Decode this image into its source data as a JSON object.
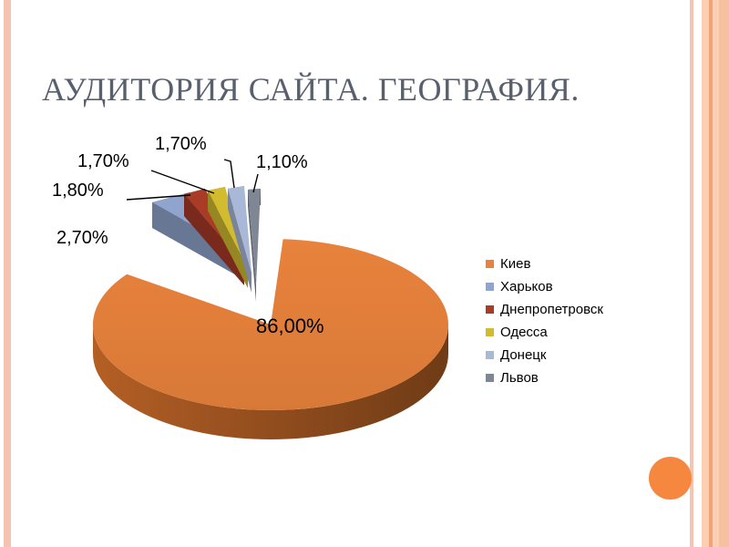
{
  "slide": {
    "title": "АУДИТОРИЯ САЙТА. ГЕОГРАФИЯ.",
    "background": "#FFFFFF",
    "theme": {
      "left_bar": "#F5C3AF",
      "right_thin_line": "#F2C6B3",
      "right_band_base": "#FBCFB2",
      "right_band_stripe": "#F3A377",
      "right_band_edge": "#F7C19F",
      "circle": "#F6873E",
      "title_color": "#58606E"
    }
  },
  "chart_data": {
    "type": "pie",
    "style": "3d-exploded",
    "title": "",
    "unit": "%",
    "decimal_separator": ",",
    "legend_position": "right",
    "categories": [
      "Киев",
      "Харьков",
      "Днепропетровск",
      "Одесса",
      "Донецк",
      "Львов"
    ],
    "values": [
      86.0,
      2.7,
      1.8,
      1.7,
      1.7,
      1.1
    ],
    "value_labels": [
      "86,00%",
      "2,70%",
      "1,80%",
      "1,70%",
      "1,70%",
      "1,10%"
    ],
    "colors": [
      "#E8823C",
      "#8FA5CE",
      "#A93B27",
      "#D2BB2F",
      "#A9B8D6",
      "#7F8694"
    ],
    "main_slice_side_dark": "#6F3B16",
    "main_slice_side_light": "#B45F25",
    "leader_line_color": "#000000"
  }
}
